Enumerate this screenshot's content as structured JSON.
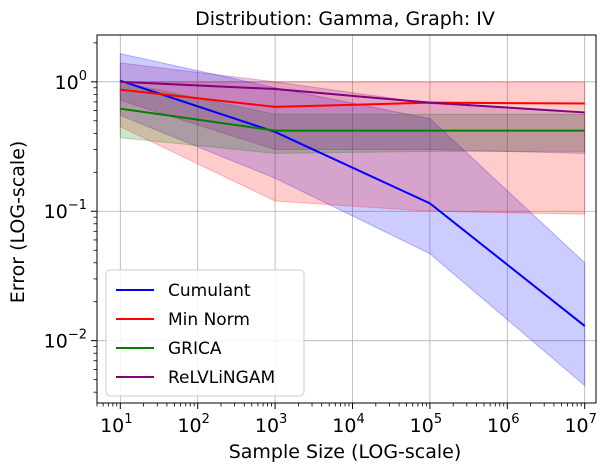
{
  "chart_data": {
    "type": "line",
    "title": "Distribution: Gamma, Graph: IV",
    "xlabel": "Sample Size (LOG-scale)",
    "ylabel": "Error (LOG-scale)",
    "x_scale": "log",
    "y_scale": "log",
    "xlim": [
      5,
      14000000
    ],
    "ylim": [
      0.0033,
      2.3
    ],
    "grid": true,
    "legend_position": "lower-left",
    "x": [
      10,
      1000,
      100000,
      10000000
    ],
    "x_ticks": [
      {
        "value": 10,
        "base": "10",
        "exp": "1"
      },
      {
        "value": 100,
        "base": "10",
        "exp": "2"
      },
      {
        "value": 1000,
        "base": "10",
        "exp": "3"
      },
      {
        "value": 10000,
        "base": "10",
        "exp": "4"
      },
      {
        "value": 100000,
        "base": "10",
        "exp": "5"
      },
      {
        "value": 1000000,
        "base": "10",
        "exp": "6"
      },
      {
        "value": 10000000,
        "base": "10",
        "exp": "7"
      }
    ],
    "y_ticks": [
      {
        "value": 0.01,
        "base": "10",
        "exp": "−2"
      },
      {
        "value": 0.1,
        "base": "10",
        "exp": "−1"
      },
      {
        "value": 1,
        "base": "10",
        "exp": "0"
      }
    ],
    "series": [
      {
        "name": "Cumulant",
        "color": "#0000ff",
        "values": [
          1.02,
          0.41,
          0.115,
          0.013
        ],
        "lower": [
          0.55,
          0.18,
          0.047,
          0.0045
        ],
        "upper": [
          1.65,
          0.9,
          0.52,
          0.04
        ]
      },
      {
        "name": "Min Norm",
        "color": "#ff0000",
        "values": [
          0.87,
          0.64,
          0.69,
          0.68
        ],
        "lower": [
          0.45,
          0.12,
          0.1,
          0.095
        ],
        "upper": [
          1.0,
          1.0,
          1.0,
          1.0
        ]
      },
      {
        "name": "GRICA",
        "color": "#008000",
        "values": [
          0.62,
          0.42,
          0.42,
          0.42
        ],
        "lower": [
          0.37,
          0.28,
          0.29,
          0.29
        ],
        "upper": [
          1.0,
          0.56,
          0.56,
          0.56
        ]
      },
      {
        "name": "ReLVLiNGAM",
        "color": "#800080",
        "values": [
          1.0,
          0.88,
          0.69,
          0.58
        ],
        "lower": [
          0.72,
          0.3,
          0.3,
          0.28
        ],
        "upper": [
          1.4,
          1.0,
          0.68,
          0.58
        ]
      }
    ]
  }
}
